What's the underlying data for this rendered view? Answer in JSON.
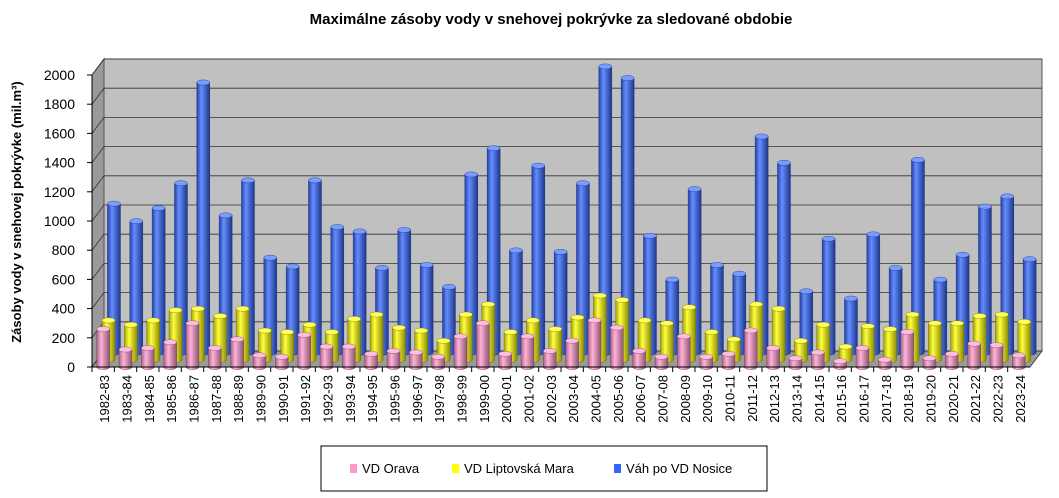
{
  "chart_data": {
    "type": "bar",
    "title": "Maximálne zásoby vody v snehovej pokrývke za sledované obdobie",
    "xlabel": "",
    "ylabel": "Zásoby vody v snehovej pokrývke (mil.m³)",
    "ylim": [
      0,
      2000
    ],
    "yticks": [
      "0",
      "200",
      "400",
      "600",
      "800",
      "1000",
      "1200",
      "1400",
      "1600",
      "1800",
      "2000"
    ],
    "grid": true,
    "legend_position": "bottom",
    "categories": [
      "1982-83",
      "1983-84",
      "1984-85",
      "1985-86",
      "1986-87",
      "1987-88",
      "1988-89",
      "1989-90",
      "1990-91",
      "1991-92",
      "1992-93",
      "1993-94",
      "1994-95",
      "1995-96",
      "1996-97",
      "1997-98",
      "1998-99",
      "1999-00",
      "2000-01",
      "2001-02",
      "2002-03",
      "2003-04",
      "2004-05",
      "2005-06",
      "2006-07",
      "2007-08",
      "2008-09",
      "2009-10",
      "2010-11",
      "2011-12",
      "2012-13",
      "2013-14",
      "2014-15",
      "2015-16",
      "2016-17",
      "2017-18",
      "2018-19",
      "2019-20",
      "2020-21",
      "2021-22",
      "2022-23",
      "2023-24"
    ],
    "series": [
      {
        "name": "VD Orava",
        "color": "#ff99cc",
        "values": [
          260,
          120,
          130,
          170,
          300,
          130,
          190,
          80,
          70,
          220,
          140,
          140,
          90,
          110,
          100,
          70,
          210,
          300,
          90,
          210,
          110,
          180,
          320,
          270,
          110,
          70,
          210,
          70,
          90,
          250,
          130,
          60,
          100,
          40,
          130,
          50,
          240,
          60,
          90,
          160,
          150,
          80
        ]
      },
      {
        "name": "VD Liptovská Mara",
        "color": "#ffff00",
        "values": [
          270,
          240,
          270,
          340,
          350,
          300,
          350,
          200,
          190,
          240,
          190,
          280,
          310,
          220,
          200,
          130,
          310,
          380,
          190,
          270,
          210,
          290,
          440,
          410,
          270,
          250,
          360,
          190,
          140,
          380,
          350,
          130,
          240,
          90,
          230,
          210,
          310,
          250,
          250,
          300,
          310,
          260
        ]
      },
      {
        "name": "Váh po VD Nosice",
        "color": "#3366ff",
        "values": [
          1020,
          900,
          990,
          1160,
          1850,
          940,
          1180,
          650,
          590,
          1180,
          860,
          830,
          580,
          840,
          600,
          450,
          1220,
          1400,
          700,
          1280,
          690,
          1160,
          1960,
          1880,
          800,
          500,
          1120,
          600,
          540,
          1480,
          1300,
          420,
          780,
          370,
          810,
          580,
          1320,
          500,
          670,
          1000,
          1070,
          640
        ]
      }
    ]
  }
}
